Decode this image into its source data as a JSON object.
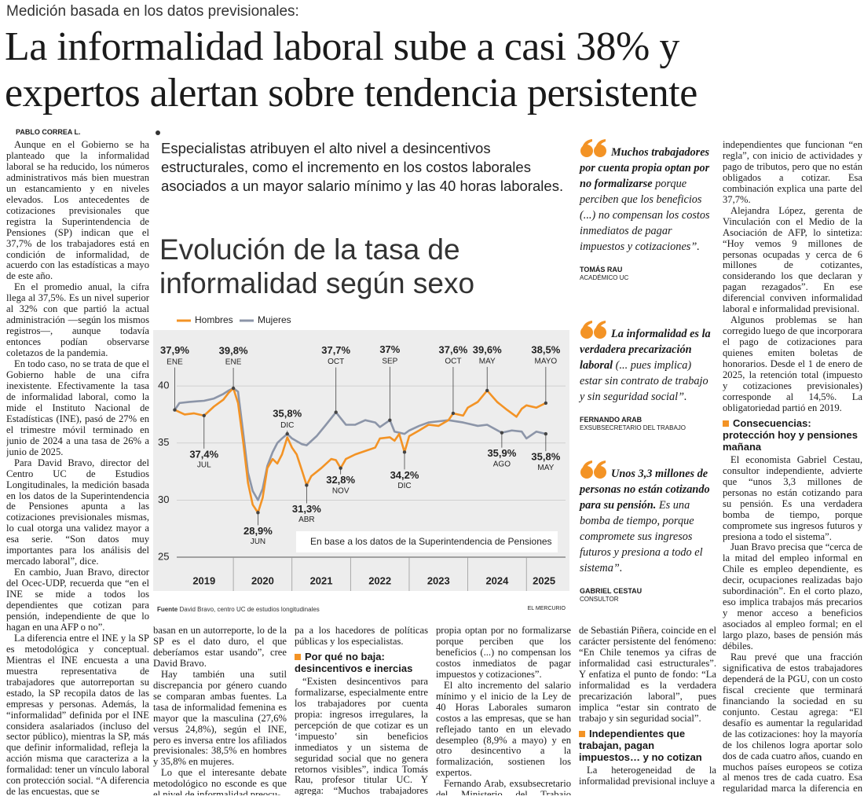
{
  "header": {
    "kicker": "Medición basada en los datos previsionales:",
    "title_lines": [
      "La informalidad laboral sube a casi 38% y",
      "expertos alertan sobre tendencia persistente"
    ],
    "byline": "PABLO CORREA L.",
    "deck": "Especialistas atribuyen el alto nivel a desincentivos estructurales, como el incremento en los costos laborales asociados a un mayor salario mínimo y las 40 horas laborales."
  },
  "chart_data": {
    "type": "line",
    "title": "Evolución de la tasa de informalidad según sexo",
    "note": "En base a los datos de la Superintendencia de Pensiones",
    "source_label": "Fuente",
    "source": "David Bravo, centro UC de estudios longitudinales",
    "credit": "EL MERCURIO",
    "xlim": [
      2018.9,
      2025.6
    ],
    "ylim": [
      25,
      44
    ],
    "yticks": [
      25,
      30,
      35,
      40
    ],
    "xticks": [
      {
        "value": 2019.5,
        "label": "2019"
      },
      {
        "value": 2020.5,
        "label": "2020"
      },
      {
        "value": 2021.5,
        "label": "2021"
      },
      {
        "value": 2022.5,
        "label": "2022"
      },
      {
        "value": 2023.5,
        "label": "2023"
      },
      {
        "value": 2024.5,
        "label": "2024"
      },
      {
        "value": 2025.3,
        "label": "2025"
      }
    ],
    "grid": true,
    "series": [
      {
        "name": "Hombres",
        "color": "#f39325",
        "x": [
          2019.0,
          2019.17,
          2019.33,
          2019.5,
          2019.67,
          2019.83,
          2019.92,
          2020.0,
          2020.08,
          2020.17,
          2020.25,
          2020.33,
          2020.42,
          2020.5,
          2020.58,
          2020.67,
          2020.75,
          2020.83,
          2020.92,
          2021.0,
          2021.08,
          2021.17,
          2021.25,
          2021.33,
          2021.5,
          2021.67,
          2021.75,
          2021.83,
          2021.92,
          2022.08,
          2022.25,
          2022.42,
          2022.5,
          2022.67,
          2022.75,
          2022.83,
          2022.92,
          2023.0,
          2023.17,
          2023.33,
          2023.5,
          2023.67,
          2023.75,
          2023.92,
          2024.0,
          2024.17,
          2024.33,
          2024.5,
          2024.67,
          2024.83,
          2024.92,
          2025.0,
          2025.17,
          2025.33
        ],
        "values": [
          37.9,
          37.5,
          37.6,
          37.4,
          38.2,
          38.8,
          39.4,
          39.8,
          38.5,
          35.0,
          31.5,
          29.6,
          28.9,
          30.2,
          32.8,
          33.6,
          33.2,
          34.0,
          35.5,
          34.6,
          34.0,
          32.6,
          31.3,
          32.1,
          32.8,
          33.6,
          33.5,
          32.8,
          33.6,
          34.0,
          34.3,
          34.6,
          35.4,
          35.5,
          35.2,
          35.8,
          34.2,
          35.6,
          36.1,
          36.6,
          36.5,
          37.0,
          37.6,
          37.4,
          38.1,
          38.6,
          39.6,
          38.6,
          37.9,
          37.3,
          38.0,
          38.3,
          38.1,
          38.5
        ]
      },
      {
        "name": "Mujeres",
        "color": "#8c95a8",
        "x": [
          2019.0,
          2019.08,
          2019.25,
          2019.5,
          2019.67,
          2019.83,
          2019.92,
          2020.0,
          2020.08,
          2020.17,
          2020.25,
          2020.33,
          2020.42,
          2020.5,
          2020.58,
          2020.67,
          2020.75,
          2020.83,
          2020.92,
          2021.0,
          2021.17,
          2021.25,
          2021.42,
          2021.58,
          2021.75,
          2021.92,
          2022.08,
          2022.25,
          2022.42,
          2022.5,
          2022.67,
          2022.75,
          2022.92,
          2023.0,
          2023.17,
          2023.33,
          2023.5,
          2023.67,
          2023.92,
          2024.0,
          2024.17,
          2024.33,
          2024.58,
          2024.75,
          2024.92,
          2025.0,
          2025.17,
          2025.33
        ],
        "values": [
          37.9,
          38.5,
          38.6,
          38.7,
          38.9,
          39.3,
          39.6,
          39.8,
          39.5,
          35.8,
          32.4,
          30.8,
          30.0,
          31.0,
          33.0,
          34.2,
          35.0,
          35.4,
          35.8,
          35.4,
          34.9,
          34.8,
          35.6,
          36.6,
          37.7,
          36.6,
          36.6,
          37.0,
          36.8,
          36.4,
          37.0,
          36.0,
          35.8,
          36.1,
          36.5,
          36.8,
          36.9,
          37.0,
          36.8,
          36.7,
          36.5,
          36.6,
          35.9,
          36.1,
          36.0,
          35.4,
          36.0,
          35.8
        ]
      }
    ],
    "annotations": [
      {
        "x": 2019.0,
        "value": 37.9,
        "label": "37,9%",
        "month": "ENE"
      },
      {
        "x": 2020.0,
        "value": 39.8,
        "label": "39,8%",
        "month": "ENE"
      },
      {
        "x": 2019.5,
        "value": 37.4,
        "label": "37,4%",
        "month": "JUL"
      },
      {
        "x": 2020.42,
        "value": 28.9,
        "label": "28,9%",
        "month": "JUN"
      },
      {
        "x": 2020.92,
        "value": 35.8,
        "label": "35,8%",
        "month": "DIC"
      },
      {
        "x": 2021.25,
        "value": 31.3,
        "label": "31,3%",
        "month": "ABR"
      },
      {
        "x": 2021.83,
        "value": 32.8,
        "label": "32,8%",
        "month": "NOV"
      },
      {
        "x": 2021.75,
        "value": 37.7,
        "label": "37,7%",
        "month": "OCT"
      },
      {
        "x": 2022.67,
        "value": 37,
        "label": "37%",
        "month": "SEP"
      },
      {
        "x": 2022.92,
        "value": 34.2,
        "label": "34,2%",
        "month": "DIC"
      },
      {
        "x": 2023.75,
        "value": 37.6,
        "label": "37,6%",
        "month": "OCT"
      },
      {
        "x": 2024.33,
        "value": 39.6,
        "label": "39,6%",
        "month": "MAY"
      },
      {
        "x": 2024.58,
        "value": 35.9,
        "label": "35,9%",
        "month": "AGO"
      },
      {
        "x": 2025.33,
        "value": 38.5,
        "label": "38,5%",
        "month": "MAYO"
      },
      {
        "x": 2025.33,
        "value": 35.8,
        "label": "35,8%",
        "month": "MAY"
      }
    ]
  },
  "quotes": [
    {
      "lead": "Muchos trabajadores por cuenta propia optan por no formalizarse",
      "rest": " porque perciben que los beneficios (...) no compensan los costos inmediatos de pagar impuestos y cotizaciones”.",
      "name": "TOMÁS RAU",
      "role": "ACADÉMICO UC"
    },
    {
      "lead": "La informalidad es la verdadera precarización laboral",
      "rest": " (... pues implica) estar sin contrato de trabajo y sin seguridad social”.",
      "name": "FERNANDO ARAB",
      "role": "EXSUBSECRETARIO DEL TRABAJO"
    },
    {
      "lead": "Unos 3,3 millones de personas no están cotizando para su pensión.",
      "rest": " Es una bomba de tiempo, porque compromete sus ingresos futuros y presiona a todo el sistema”.",
      "name": "GABRIEL CESTAU",
      "role": "CONSULTOR"
    }
  ],
  "body": {
    "columns": [
      [
        {
          "paragraph": "Aunque en el Gobierno se ha planteado que la informalidad laboral se ha reducido, los números administrativos más bien muestran un estancamiento y en niveles elevados. Los antecedentes de cotizaciones previsionales que registra la Superintendencia de Pensiones (SP) indican que el 37,7% de los trabajadores está en condición de informalidad, de acuerdo con las estadísticas a mayo de este año."
        },
        {
          "paragraph": "En el promedio anual, la cifra llega al 37,5%. Es un nivel superior al 32% con que partió la actual administración —según los mismos registros—, aunque todavía entonces podían observarse coletazos de la pandemia."
        },
        {
          "paragraph": "En todo caso, no se trata de que el Gobierno hable de una cifra inexistente. Efectivamente la tasa de informalidad laboral, como la mide el Instituto Nacional de Estadísticas (INE), pasó de 27% en el trimestre móvil terminado en junio de 2024 a una tasa de 26% a junio de 2025."
        },
        {
          "paragraph": "Para David Bravo, director del Centro UC de Estudios Longitudinales, la medición basada en los datos de la Superintendencia de Pensiones apunta a las cotizaciones previsionales mismas, lo cual otorga una validez mayor a esa serie. “Son datos muy importantes para los análisis del mercado laboral”, dice."
        },
        {
          "paragraph": "En cambio, Juan Bravo, director del Ocec-UDP, recuerda que “en el INE se mide a todos los dependientes que cotizan para pensión, independiente de que lo hagan en una AFP o no”."
        },
        {
          "paragraph": "La diferencia entre el INE y la SP es metodológica y conceptual. Mientras el INE encuesta a una muestra representativa de trabajadores que autorreportan su estado, la SP recopila datos de las empresas y personas. Además, la “informalidad” definida por el INE considera asalariados (incluso del sector público), mientras la SP, más que definir informalidad, refleja la acción misma que caracteriza a la formalidad: tener un vínculo laboral con protección social. “A diferencia de las encuestas, que se"
        }
      ],
      [
        {
          "paragraph": "basan en un autorreporte, lo de la SP es el dato duro, el que deberíamos estar usando”, cree David Bravo."
        },
        {
          "paragraph": "Hay también una sutil discrepancia por género cuando se comparan ambas fuentes. La tasa de informalidad femenina es mayor que la masculina (27,6% versus 24,8%), según el INE, pero es inversa entre los afiliados previsionales: 38,5% en hombres y 35,8% en mujeres."
        },
        {
          "paragraph": "Lo que el interesante debate metodológico no esconde es que el nivel de informalidad preocu-"
        }
      ],
      [
        {
          "paragraph": "pa a los hacedores de políticas públicas y los especialistas."
        },
        {
          "subhead": "Por qué no baja: desincentivos e inercias"
        },
        {
          "paragraph": "“Existen desincentivos para formalizarse, especialmente entre los trabajadores por cuenta propia: ingresos irregulares, la percepción de que cotizar es un ‘impuesto’ sin beneficios inmediatos y un sistema de seguridad social que no genera retornos visibles”, indica Tomás Rau, profesor titular UC. Y agrega: “Muchos trabajadores por cuenta"
        }
      ],
      [
        {
          "paragraph": "propia optan por no formalizarse porque perciben que los beneficios (...) no compensan los costos inmediatos de pagar impuestos y cotizaciones”."
        },
        {
          "paragraph": "El alto incremento del salario mínimo y el inicio de la Ley de 40 Horas Laborales sumaron costos a las empresas, que se han reflejado tanto en un elevado desempleo (8,9% a mayo) y en otro desincentivo a la formalización, sostienen los expertos."
        },
        {
          "paragraph": "Fernando Arab, exsubsecretario del Ministerio del Trabajo durante el segundo gobierno"
        }
      ],
      [
        {
          "paragraph": "de Sebastián Piñera, coincide en el carácter persistente del fenómeno: “En Chile tenemos ya cifras de informalidad casi estructurales”. Y enfatiza el punto de fondo: “La informalidad es la verdadera precarización laboral”, pues implica “estar sin contrato de trabajo y sin seguridad social”."
        },
        {
          "subhead": "Independientes que trabajan, pagan impuestos… y no cotizan"
        },
        {
          "paragraph": "La heterogeneidad de la informalidad previsional incluye a"
        }
      ],
      [
        {
          "paragraph": "independientes que funcionan “en regla”, con inicio de actividades y pago de tributos, pero que no están obligados a cotizar. Esa combinación explica una parte del 37,7%."
        },
        {
          "paragraph": "Alejandra López, gerenta de Vinculación con el Medio de la Asociación de AFP, lo sintetiza: “Hoy vemos 9 millones de personas ocupadas y cerca de 6 millones de cotizantes, considerando los que declaran y pagan rezagados”. En ese diferencial conviven informalidad laboral e informalidad previsional."
        },
        {
          "paragraph": "Algunos problemas se han corregido luego de que incorporara el pago de cotizaciones para quienes emiten boletas de honorarios. Desde el 1 de enero de 2025, la retención total (impuesto y cotizaciones previsionales) corresponde al 14,5%. La obligatoriedad partió en 2019."
        },
        {
          "subhead": "Consecuencias: protección hoy y pensiones mañana"
        },
        {
          "paragraph": "El economista Gabriel Cestau, consultor independiente, advierte que “unos 3,3 millones de personas no están cotizando para su pensión. Es una verdadera bomba de tiempo, porque compromete sus ingresos futuros y presiona a todo el sistema”."
        },
        {
          "paragraph": "Juan Bravo precisa que “cerca de la mitad del empleo informal en Chile es empleo dependiente, es decir, ocupaciones realizadas bajo subordinación”. En el corto plazo, eso implica trabajos más precarios y menor acceso a beneficios asociados al empleo formal; en el largo plazo, bases de pensión más débiles."
        },
        {
          "paragraph": "Rau prevé que una fracción significativa de estos trabajadores dependerá de la PGU, con un costo fiscal creciente que terminará financiando la sociedad en su conjunto. Cestau agrega: “El desafío es aumentar la regularidad de las cotizaciones: hoy la mayoría de los chilenos logra aportar solo dos de cada cuatro años, cuando en muchos países europeos se cotiza al menos tres de cada cuatro. Esa regularidad marca la diferencia en el monto final de las pensiones”."
        }
      ]
    ]
  }
}
